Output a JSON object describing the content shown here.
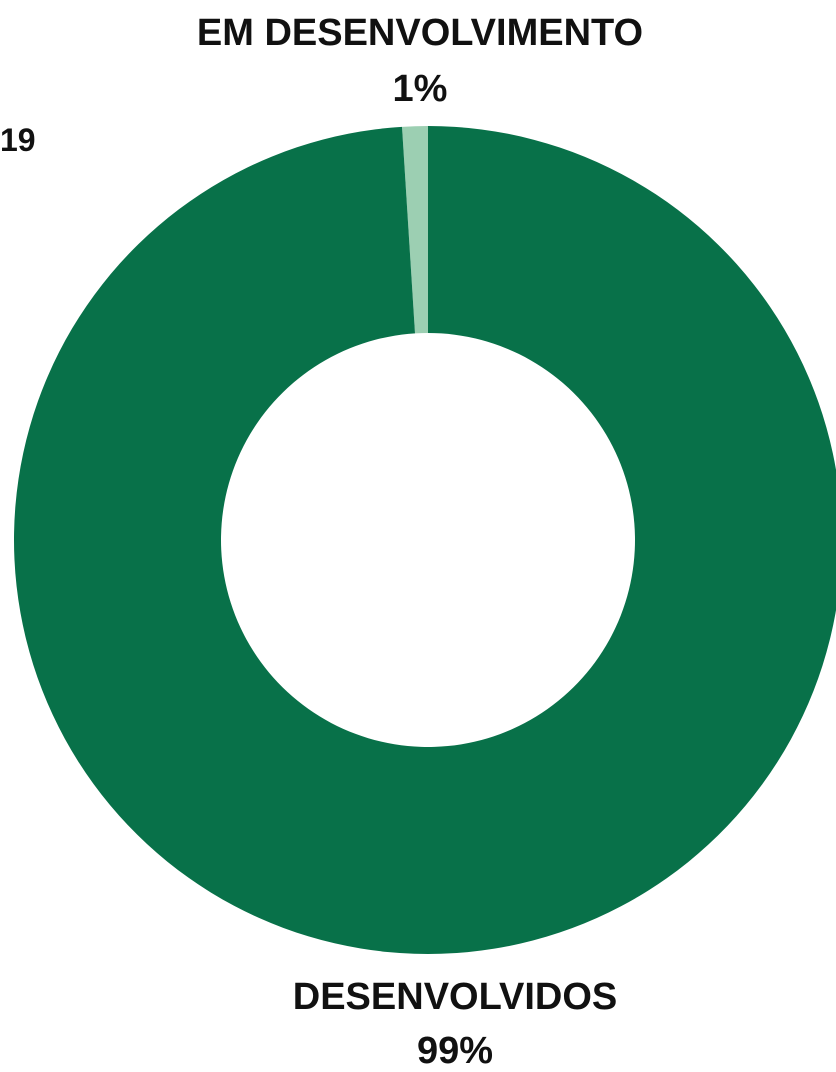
{
  "chart_data": {
    "type": "pie",
    "donut": true,
    "slices": [
      {
        "label": "EM DESENVOLVIMENTO",
        "value": 1,
        "value_label": "1%",
        "color": "#9ccfb2"
      },
      {
        "label": "DESENVOLVIDOS",
        "value": 99,
        "value_label": "99%",
        "color": "#087149"
      }
    ],
    "corner_text": "19",
    "legend": "none"
  }
}
